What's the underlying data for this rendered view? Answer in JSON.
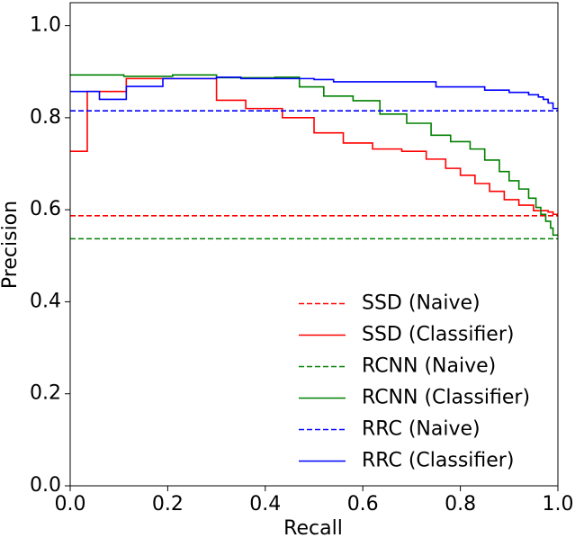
{
  "chart_data": {
    "type": "step-line",
    "xlabel": "Recall",
    "ylabel": "Precision",
    "xlim": [
      0,
      1
    ],
    "ylim": [
      0,
      1.05
    ],
    "xticks": [
      {
        "value": 0,
        "label": "0.0"
      },
      0.2,
      0.4,
      0.6,
      0.8,
      {
        "value": 1,
        "label": "1.0"
      }
    ],
    "yticks": [
      {
        "value": 0,
        "label": "0.0"
      },
      0.2,
      0.4,
      0.6,
      0.8,
      {
        "value": 1,
        "label": "1.0"
      }
    ],
    "legend": "lower right",
    "series": [
      {
        "name": "SSD (Naive)",
        "color": "#ff0000",
        "dashed": true,
        "x": [
          0,
          1
        ],
        "values": [
          0.587,
          0.587
        ]
      },
      {
        "name": "SSD (Classifier)",
        "color": "#ff0000",
        "dashed": false,
        "x": [
          0,
          0.035,
          0.115,
          0.3,
          0.36,
          0.435,
          0.5,
          0.56,
          0.62,
          0.68,
          0.73,
          0.77,
          0.8,
          0.83,
          0.86,
          0.89,
          0.92,
          0.95,
          0.98,
          0.99,
          1
        ],
        "values": [
          0.727,
          0.857,
          0.885,
          0.838,
          0.82,
          0.8,
          0.767,
          0.745,
          0.732,
          0.727,
          0.71,
          0.69,
          0.675,
          0.657,
          0.64,
          0.622,
          0.61,
          0.598,
          0.595,
          0.59,
          0.59
        ]
      },
      {
        "name": "RCNN (Naive)",
        "color": "#008000",
        "dashed": true,
        "x": [
          0,
          1
        ],
        "values": [
          0.537,
          0.537
        ]
      },
      {
        "name": "RCNN (Classifier)",
        "color": "#008000",
        "dashed": false,
        "x": [
          0,
          0.11,
          0.21,
          0.3,
          0.42,
          0.47,
          0.52,
          0.58,
          0.635,
          0.69,
          0.74,
          0.78,
          0.82,
          0.85,
          0.88,
          0.9,
          0.92,
          0.94,
          0.955,
          0.965,
          0.975,
          0.985,
          0.99,
          1
        ],
        "values": [
          0.893,
          0.89,
          0.893,
          0.887,
          0.888,
          0.867,
          0.847,
          0.837,
          0.808,
          0.788,
          0.762,
          0.748,
          0.732,
          0.708,
          0.683,
          0.663,
          0.645,
          0.625,
          0.605,
          0.59,
          0.575,
          0.56,
          0.545,
          0.545
        ]
      },
      {
        "name": "RRC (Naive)",
        "color": "#0000ff",
        "dashed": true,
        "x": [
          0,
          1
        ],
        "values": [
          0.815,
          0.815
        ]
      },
      {
        "name": "RRC (Classifier)",
        "color": "#0000ff",
        "dashed": false,
        "x": [
          0,
          0.06,
          0.115,
          0.19,
          0.3,
          0.35,
          0.5,
          0.54,
          0.75,
          0.85,
          0.9,
          0.94,
          0.96,
          0.97,
          0.98,
          0.99,
          1
        ],
        "values": [
          0.857,
          0.84,
          0.868,
          0.885,
          0.888,
          0.885,
          0.883,
          0.878,
          0.867,
          0.86,
          0.855,
          0.85,
          0.845,
          0.84,
          0.832,
          0.82,
          0.82
        ]
      }
    ]
  }
}
